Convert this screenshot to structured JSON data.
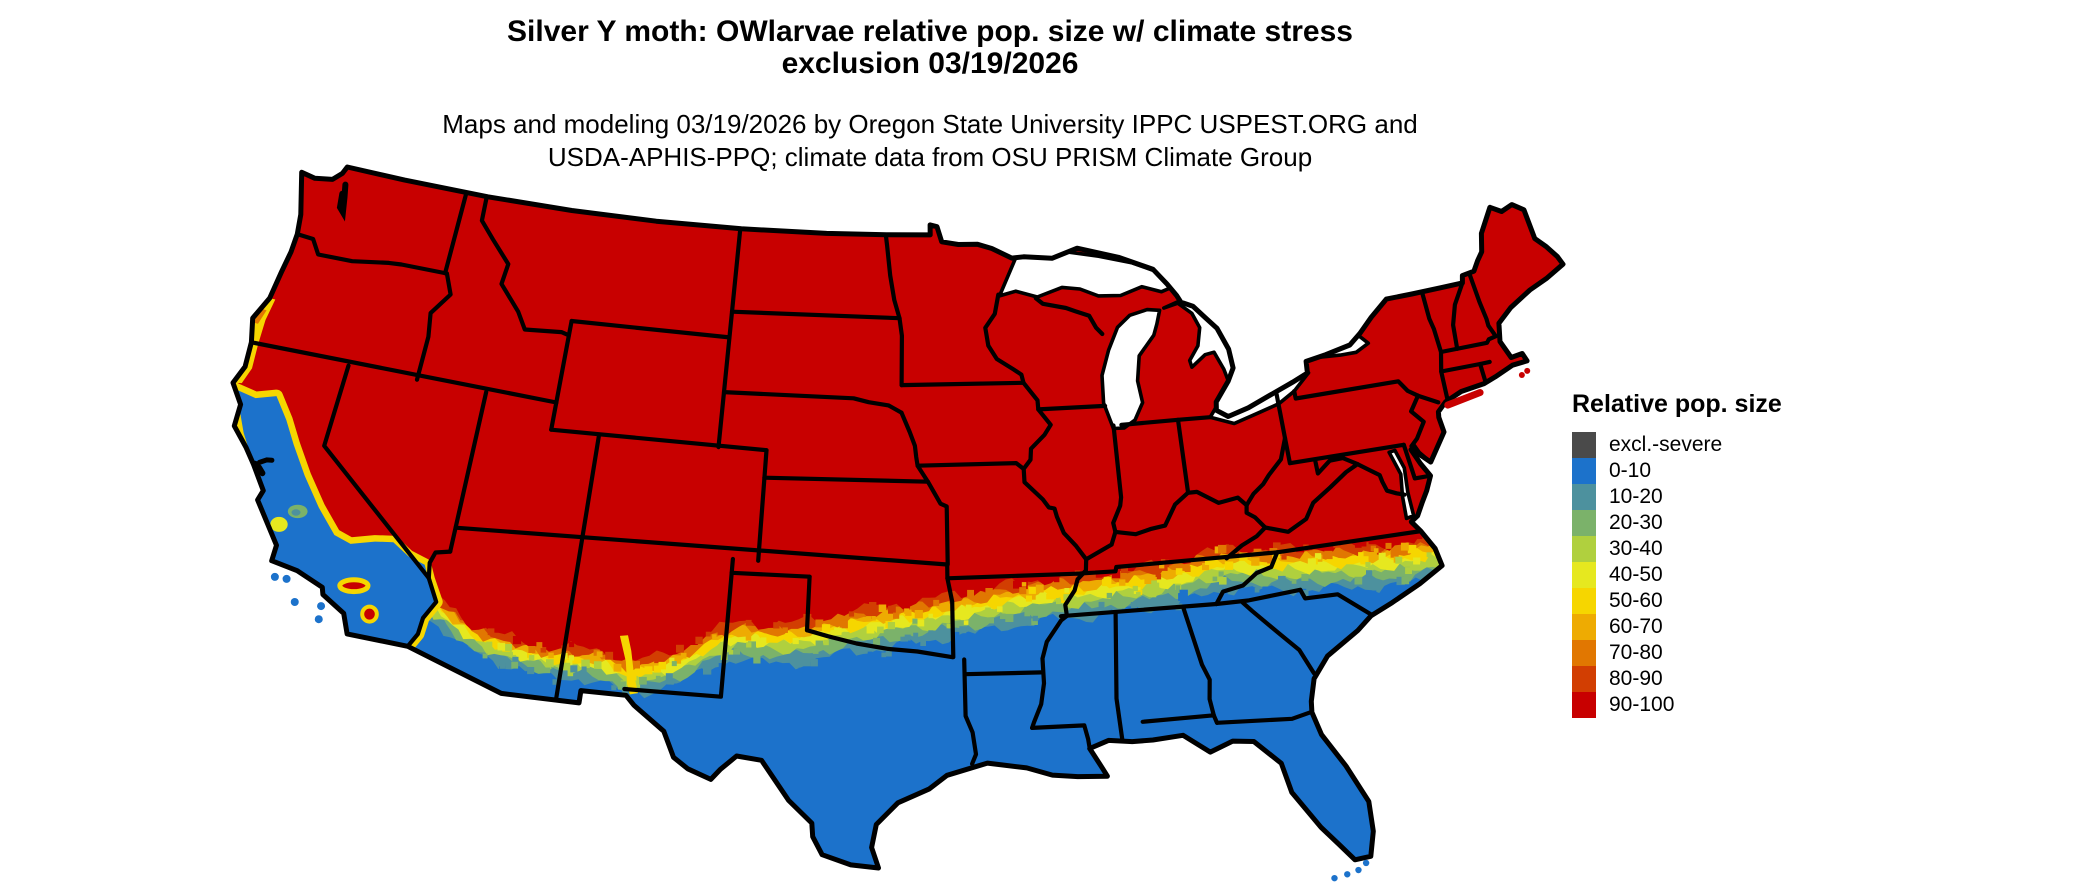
{
  "title": {
    "line1": "Silver Y moth: OWlarvae relative pop. size w/ climate stress",
    "line2": "exclusion 03/19/2026"
  },
  "subtitle": {
    "line1": "Maps and modeling 03/19/2026 by Oregon State University IPPC USPEST.ORG and",
    "line2": "USDA-APHIS-PPQ; climate data from OSU PRISM Climate Group"
  },
  "legend": {
    "title": "Relative pop. size",
    "items": [
      {
        "label": "excl.-severe",
        "color": "#4a4a4a"
      },
      {
        "label": "0-10",
        "color": "#1c72cb"
      },
      {
        "label": "10-20",
        "color": "#4d919e"
      },
      {
        "label": "20-30",
        "color": "#7bb26a"
      },
      {
        "label": "30-40",
        "color": "#b0d03e"
      },
      {
        "label": "40-50",
        "color": "#e6e81f"
      },
      {
        "label": "50-60",
        "color": "#f6d600"
      },
      {
        "label": "60-70",
        "color": "#eeab02"
      },
      {
        "label": "70-80",
        "color": "#e17701"
      },
      {
        "label": "80-90",
        "color": "#d23e02"
      },
      {
        "label": "90-100",
        "color": "#c80000"
      }
    ]
  },
  "map": {
    "region": "Continental United States",
    "border_color": "#000000",
    "water_color": "#ffffff",
    "background": "#ffffff"
  }
}
